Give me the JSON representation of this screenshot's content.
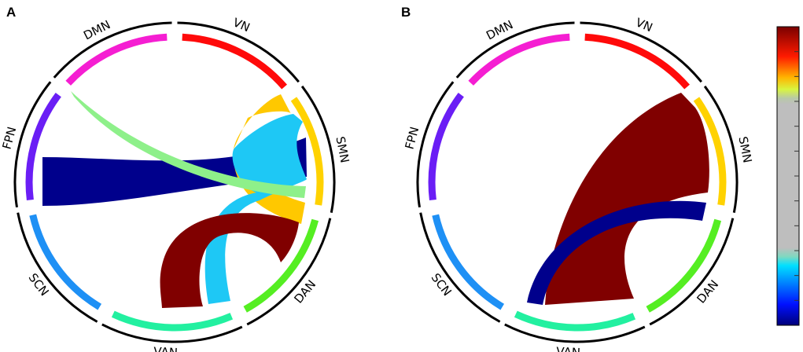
{
  "panels": [
    {
      "label": "A",
      "networks": [
        {
          "name": "VN",
          "color": "#ff0a0a"
        },
        {
          "name": "SMN",
          "color": "#ffd200"
        },
        {
          "name": "DAN",
          "color": "#55ee22"
        },
        {
          "name": "VAN",
          "color": "#22f0a0"
        },
        {
          "name": "SCN",
          "color": "#1e90f5"
        },
        {
          "name": "FPN",
          "color": "#6a1ef5"
        },
        {
          "name": "DMN",
          "color": "#f51ed2"
        }
      ],
      "connections": [
        {
          "from": "SMN",
          "to": "FPN",
          "color": "#00008c"
        },
        {
          "from": "DMN",
          "to": "SMN",
          "color": "#8ef08a"
        },
        {
          "from": "SMN",
          "to": "VAN",
          "color": "#1ec8f5"
        },
        {
          "from": "SMN",
          "to": "SMN",
          "color": "#ffc800"
        },
        {
          "from": "DAN",
          "to": "VAN",
          "color": "#800000"
        }
      ]
    },
    {
      "label": "B",
      "networks": [
        {
          "name": "VN",
          "color": "#ff0a0a"
        },
        {
          "name": "SMN",
          "color": "#ffd200"
        },
        {
          "name": "DAN",
          "color": "#55ee22"
        },
        {
          "name": "VAN",
          "color": "#22f0a0"
        },
        {
          "name": "SCN",
          "color": "#1e90f5"
        },
        {
          "name": "FPN",
          "color": "#6a1ef5"
        },
        {
          "name": "DMN",
          "color": "#f51ed2"
        }
      ],
      "connections": [
        {
          "from": "SMN",
          "to": "VAN",
          "color": "#800000"
        },
        {
          "from": "DAN",
          "to": "VAN",
          "color": "#00008c"
        }
      ]
    }
  ],
  "colorbar": {
    "stops": [
      {
        "pos": 0.0,
        "color": "#7a0000"
      },
      {
        "pos": 0.1,
        "color": "#ff1a00"
      },
      {
        "pos": 0.17,
        "color": "#ffb400"
      },
      {
        "pos": 0.21,
        "color": "#d8f540"
      },
      {
        "pos": 0.24,
        "color": "#b8c8a8"
      },
      {
        "pos": 0.26,
        "color": "#bebebe"
      },
      {
        "pos": 0.74,
        "color": "#bebebe"
      },
      {
        "pos": 0.77,
        "color": "#80d8c0"
      },
      {
        "pos": 0.8,
        "color": "#00e0ff"
      },
      {
        "pos": 0.86,
        "color": "#0080ff"
      },
      {
        "pos": 0.93,
        "color": "#0010ff"
      },
      {
        "pos": 1.0,
        "color": "#00007a"
      }
    ],
    "tick_count": 12
  }
}
